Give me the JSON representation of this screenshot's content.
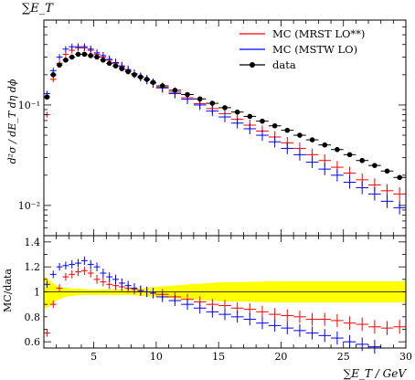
{
  "chart_data": [
    {
      "type": "scatter",
      "panel": "main",
      "title": "∑E_T",
      "ylabel": "d²σ / dE_T dη dϕ",
      "yscale": "log",
      "xlim": [
        1,
        30
      ],
      "ylim": [
        0.005,
        0.7
      ],
      "ytick_labels": [
        "10⁻¹",
        "10⁻²"
      ],
      "legend_placement": "top-right",
      "legend": [
        "MC (MRST LO**)",
        "MC (MSTW LO)",
        "data"
      ],
      "colors": {
        "mrst": "#ff0000",
        "mstw": "#0000ff",
        "data": "#000000"
      },
      "series": [
        {
          "name": "data",
          "x": [
            1.25,
            1.75,
            2.25,
            2.75,
            3.25,
            3.75,
            4.25,
            4.75,
            5.25,
            5.75,
            6.25,
            6.75,
            7.25,
            7.75,
            8.25,
            8.75,
            9.25,
            9.75,
            10.5,
            11.5,
            12.5,
            13.5,
            14.5,
            15.5,
            16.5,
            17.5,
            18.5,
            19.5,
            20.5,
            21.5,
            22.5,
            23.5,
            24.5,
            25.5,
            26.5,
            27.5,
            28.5,
            29.5
          ],
          "y": [
            0.12,
            0.2,
            0.25,
            0.28,
            0.3,
            0.32,
            0.32,
            0.31,
            0.3,
            0.28,
            0.26,
            0.245,
            0.23,
            0.215,
            0.2,
            0.19,
            0.18,
            0.168,
            0.155,
            0.14,
            0.127,
            0.115,
            0.104,
            0.094,
            0.085,
            0.077,
            0.069,
            0.062,
            0.056,
            0.05,
            0.045,
            0.04,
            0.036,
            0.032,
            0.028,
            0.025,
            0.022,
            0.019
          ]
        },
        {
          "name": "MC (MRST LO**)",
          "x": [
            1.25,
            1.75,
            2.25,
            2.75,
            3.25,
            3.75,
            4.25,
            4.75,
            5.25,
            5.75,
            6.25,
            6.75,
            7.25,
            7.75,
            8.25,
            8.75,
            9.25,
            9.75,
            10.5,
            11.5,
            12.5,
            13.5,
            14.5,
            15.5,
            16.5,
            17.5,
            18.5,
            19.5,
            20.5,
            21.5,
            22.5,
            23.5,
            24.5,
            25.5,
            26.5,
            27.5,
            28.5,
            29.5
          ],
          "y": [
            0.08,
            0.18,
            0.26,
            0.32,
            0.35,
            0.37,
            0.37,
            0.35,
            0.32,
            0.3,
            0.28,
            0.26,
            0.24,
            0.22,
            0.205,
            0.19,
            0.18,
            0.165,
            0.15,
            0.134,
            0.118,
            0.103,
            0.092,
            0.082,
            0.072,
            0.063,
            0.055,
            0.048,
            0.042,
            0.037,
            0.032,
            0.028,
            0.024,
            0.021,
            0.018,
            0.016,
            0.014,
            0.013
          ]
        },
        {
          "name": "MC (MSTW LO)",
          "x": [
            1.25,
            1.75,
            2.25,
            2.75,
            3.25,
            3.75,
            4.25,
            4.75,
            5.25,
            5.75,
            6.25,
            6.75,
            7.25,
            7.75,
            8.25,
            8.75,
            9.25,
            9.75,
            10.5,
            11.5,
            12.5,
            13.5,
            14.5,
            15.5,
            16.5,
            17.5,
            18.5,
            19.5,
            20.5,
            21.5,
            22.5,
            23.5,
            24.5,
            25.5,
            26.5,
            27.5,
            28.5,
            29.5
          ],
          "y": [
            0.13,
            0.22,
            0.3,
            0.36,
            0.38,
            0.38,
            0.38,
            0.36,
            0.33,
            0.31,
            0.285,
            0.265,
            0.245,
            0.225,
            0.205,
            0.19,
            0.178,
            0.165,
            0.148,
            0.13,
            0.114,
            0.1,
            0.087,
            0.076,
            0.066,
            0.058,
            0.05,
            0.043,
            0.037,
            0.032,
            0.027,
            0.023,
            0.02,
            0.017,
            0.015,
            0.013,
            0.011,
            0.0095
          ]
        }
      ]
    },
    {
      "type": "scatter",
      "panel": "ratio",
      "ylabel": "MC/data",
      "xlabel": "∑E_T / GeV",
      "xlim": [
        1,
        30
      ],
      "ylim": [
        0.55,
        1.45
      ],
      "yticks": [
        0.6,
        0.8,
        1,
        1.2,
        1.4
      ],
      "xticks": [
        5,
        10,
        15,
        20,
        25,
        30
      ],
      "series": [
        {
          "name": "MC (MRST LO**)",
          "x": [
            1.25,
            1.75,
            2.25,
            2.75,
            3.25,
            3.75,
            4.25,
            4.75,
            5.25,
            5.75,
            6.25,
            6.75,
            7.25,
            7.75,
            8.25,
            8.75,
            9.25,
            9.75,
            10.5,
            11.5,
            12.5,
            13.5,
            14.5,
            15.5,
            16.5,
            17.5,
            18.5,
            19.5,
            20.5,
            21.5,
            22.5,
            23.5,
            24.5,
            25.5,
            26.5,
            27.5,
            28.5,
            29.5
          ],
          "y": [
            0.67,
            0.9,
            1.03,
            1.12,
            1.14,
            1.16,
            1.17,
            1.15,
            1.1,
            1.08,
            1.06,
            1.05,
            1.04,
            1.03,
            1.02,
            1.01,
            1.0,
            0.99,
            0.98,
            0.96,
            0.94,
            0.92,
            0.9,
            0.89,
            0.87,
            0.86,
            0.84,
            0.82,
            0.81,
            0.8,
            0.78,
            0.78,
            0.77,
            0.75,
            0.74,
            0.72,
            0.71,
            0.72
          ]
        },
        {
          "name": "MC (MSTW LO)",
          "x": [
            1.25,
            1.75,
            2.25,
            2.75,
            3.25,
            3.75,
            4.25,
            4.75,
            5.25,
            5.75,
            6.25,
            6.75,
            7.25,
            7.75,
            8.25,
            8.75,
            9.25,
            9.75,
            10.5,
            11.5,
            12.5,
            13.5,
            14.5,
            15.5,
            16.5,
            17.5,
            18.5,
            19.5,
            20.5,
            21.5,
            22.5,
            23.5,
            24.5,
            25.5,
            26.5,
            27.5,
            28.5,
            29.5
          ],
          "y": [
            1.06,
            1.14,
            1.2,
            1.21,
            1.22,
            1.23,
            1.25,
            1.22,
            1.2,
            1.15,
            1.12,
            1.1,
            1.07,
            1.05,
            1.03,
            1.01,
            1.0,
            0.99,
            0.96,
            0.93,
            0.9,
            0.87,
            0.84,
            0.82,
            0.8,
            0.78,
            0.75,
            0.73,
            0.71,
            0.69,
            0.67,
            0.65,
            0.63,
            0.6,
            0.58,
            0.56,
            0.53,
            0.51
          ]
        }
      ],
      "band": {
        "x": [
          1,
          1.5,
          2,
          2.5,
          3,
          3.5,
          4,
          4.5,
          5,
          6,
          7,
          8,
          9,
          10,
          12,
          15,
          20,
          25,
          30
        ],
        "lo": [
          0.86,
          0.89,
          0.93,
          0.95,
          0.965,
          0.97,
          0.975,
          0.975,
          0.975,
          0.975,
          0.975,
          0.975,
          0.965,
          0.96,
          0.945,
          0.925,
          0.915,
          0.915,
          0.915
        ],
        "hi": [
          1.13,
          1.09,
          1.05,
          1.03,
          1.03,
          1.025,
          1.025,
          1.02,
          1.02,
          1.02,
          1.02,
          1.025,
          1.03,
          1.04,
          1.055,
          1.075,
          1.085,
          1.085,
          1.085
        ]
      },
      "band_color": "#ffff00"
    }
  ]
}
